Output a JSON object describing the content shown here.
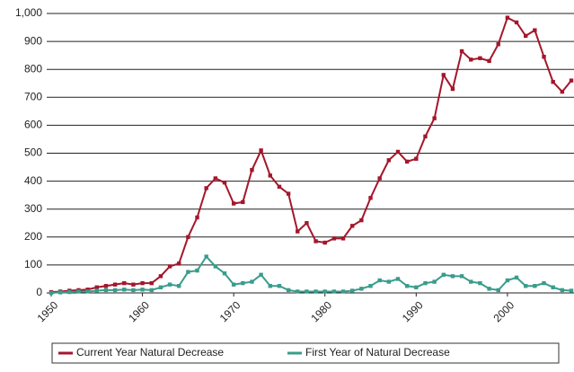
{
  "chart_data": {
    "type": "line",
    "x": [
      1950,
      1951,
      1952,
      1953,
      1954,
      1955,
      1956,
      1957,
      1958,
      1959,
      1960,
      1961,
      1962,
      1963,
      1964,
      1965,
      1966,
      1967,
      1968,
      1969,
      1970,
      1971,
      1972,
      1973,
      1974,
      1975,
      1976,
      1977,
      1978,
      1979,
      1980,
      1981,
      1982,
      1983,
      1984,
      1985,
      1986,
      1987,
      1988,
      1989,
      1990,
      1991,
      1992,
      1993,
      1994,
      1995,
      1996,
      1997,
      1998,
      1999,
      2000,
      2001,
      2002,
      2003,
      2004,
      2005,
      2006,
      2007
    ],
    "series": [
      {
        "name": "Current Year Natural Decrease",
        "color": "#a3172c",
        "values": [
          3,
          5,
          8,
          10,
          12,
          20,
          25,
          30,
          35,
          30,
          35,
          35,
          60,
          95,
          105,
          200,
          270,
          375,
          410,
          395,
          320,
          325,
          440,
          510,
          420,
          380,
          355,
          220,
          250,
          185,
          180,
          195,
          195,
          240,
          260,
          340,
          410,
          475,
          505,
          470,
          480,
          560,
          625,
          780,
          730,
          865,
          835,
          840,
          830,
          890,
          985,
          968,
          920,
          940,
          845,
          755,
          720,
          760
        ]
      },
      {
        "name": "First Year of Natural Decrease",
        "color": "#3a9c8c",
        "values": [
          0,
          2,
          3,
          5,
          5,
          8,
          10,
          10,
          12,
          10,
          12,
          10,
          20,
          30,
          25,
          75,
          80,
          130,
          95,
          70,
          30,
          35,
          40,
          65,
          25,
          25,
          10,
          5,
          5,
          5,
          5,
          5,
          5,
          8,
          15,
          25,
          45,
          40,
          50,
          25,
          20,
          35,
          40,
          65,
          60,
          60,
          40,
          35,
          15,
          10,
          45,
          55,
          25,
          25,
          35,
          20,
          10,
          8
        ]
      }
    ],
    "xlim": [
      1950,
      2007
    ],
    "xticks": [
      1950,
      1960,
      1970,
      1980,
      1990,
      2000
    ],
    "ylim": [
      0,
      1000
    ],
    "yticks": [
      0,
      100,
      200,
      300,
      400,
      500,
      600,
      700,
      800,
      900,
      {
        "value": 1000,
        "label": "1,000"
      }
    ],
    "grid": true
  }
}
